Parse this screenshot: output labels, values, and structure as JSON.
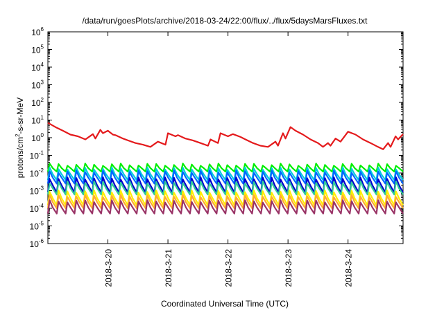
{
  "chart_data": {
    "type": "line",
    "title": "/data/run/goesPlots/archive/2018-03-24/22:00/flux/../flux/5daysMarsFluxes.txt",
    "xlabel": "Coordinated Universal Time (UTC)",
    "ylabel": "protons/cm2-s-sr-MeV",
    "ylabel_base": "protons/cm",
    "ylabel_sup": "2",
    "ylabel_rest": "-s-sr-MeV",
    "yscale": "log",
    "ylim": [
      1e-06,
      1000000.0
    ],
    "y_ticks": [
      {
        "value": 1e-06,
        "base": "10",
        "exp": "-6"
      },
      {
        "value": 1e-05,
        "base": "10",
        "exp": "-5"
      },
      {
        "value": 0.0001,
        "base": "10",
        "exp": "-4"
      },
      {
        "value": 0.001,
        "base": "10",
        "exp": "-3"
      },
      {
        "value": 0.01,
        "base": "10",
        "exp": "-2"
      },
      {
        "value": 0.1,
        "base": "10",
        "exp": "-1"
      },
      {
        "value": 1,
        "base": "10",
        "exp": "0"
      },
      {
        "value": 10,
        "base": "10",
        "exp": "1"
      },
      {
        "value": 100,
        "base": "10",
        "exp": "2"
      },
      {
        "value": 1000,
        "base": "10",
        "exp": "3"
      },
      {
        "value": 10000,
        "base": "10",
        "exp": "4"
      },
      {
        "value": 100000,
        "base": "10",
        "exp": "5"
      },
      {
        "value": 1000000,
        "base": "10",
        "exp": "6"
      }
    ],
    "xlim": [
      "2018-03-19T00:00",
      "2018-03-24T22:00"
    ],
    "x_ticks": [
      "2018-3-20",
      "2018-3-21",
      "2018-3-22",
      "2018-3-23",
      "2018-3-24"
    ],
    "grid": false,
    "legend": "none",
    "series": [
      {
        "color": "#e41a1c",
        "x": [
          "2018-03-19T00:00",
          "2018-03-19T03:00",
          "2018-03-19T06:00",
          "2018-03-19T09:00",
          "2018-03-19T12:00",
          "2018-03-19T15:00",
          "2018-03-19T18:00",
          "2018-03-19T19:00",
          "2018-03-19T21:00",
          "2018-03-19T22:00",
          "2018-03-20T00:00",
          "2018-03-20T02:00",
          "2018-03-20T03:00",
          "2018-03-20T06:00",
          "2018-03-20T08:00",
          "2018-03-20T11:00",
          "2018-03-20T14:00",
          "2018-03-20T17:00",
          "2018-03-20T20:00",
          "2018-03-20T23:00",
          "2018-03-21T00:00",
          "2018-03-21T03:00",
          "2018-03-21T04:00",
          "2018-03-21T07:00",
          "2018-03-21T10:00",
          "2018-03-21T13:00",
          "2018-03-21T16:00",
          "2018-03-21T17:00",
          "2018-03-21T20:00",
          "2018-03-21T21:00",
          "2018-03-22T00:00",
          "2018-03-22T02:00",
          "2018-03-22T05:00",
          "2018-03-22T07:00",
          "2018-03-22T10:00",
          "2018-03-22T13:00",
          "2018-03-22T16:00",
          "2018-03-22T19:00",
          "2018-03-22T20:00",
          "2018-03-22T22:00",
          "2018-03-22T23:00",
          "2018-03-23T01:00",
          "2018-03-23T03:00",
          "2018-03-23T06:00",
          "2018-03-23T09:00",
          "2018-03-23T12:00",
          "2018-03-23T14:00",
          "2018-03-23T16:00",
          "2018-03-23T17:00",
          "2018-03-23T19:00",
          "2018-03-23T21:00",
          "2018-03-24T00:00",
          "2018-03-24T03:00",
          "2018-03-24T06:00",
          "2018-03-24T09:00",
          "2018-03-24T12:00",
          "2018-03-24T14:00",
          "2018-03-24T16:00",
          "2018-03-24T17:00",
          "2018-03-24T19:00",
          "2018-03-24T20:00",
          "2018-03-24T22:00"
        ],
        "y": [
          7,
          4,
          2.5,
          1.5,
          1.2,
          0.8,
          1.6,
          0.9,
          2.8,
          1.8,
          2.5,
          1.5,
          1.4,
          0.9,
          0.7,
          0.5,
          0.4,
          0.3,
          0.6,
          0.4,
          1.8,
          1.2,
          1.4,
          0.9,
          0.7,
          0.5,
          0.35,
          0.8,
          0.5,
          1.8,
          1.2,
          1.6,
          1.1,
          0.8,
          0.5,
          0.35,
          0.3,
          0.6,
          0.35,
          1.8,
          0.9,
          4,
          2.5,
          1.5,
          0.8,
          0.5,
          0.3,
          0.5,
          0.35,
          0.9,
          0.6,
          2.2,
          1.5,
          0.8,
          0.5,
          0.3,
          0.22,
          0.5,
          0.3,
          1.2,
          0.8,
          1.6
        ]
      },
      {
        "color": "#00ee00",
        "peak": 0.03,
        "trough": 0.012
      },
      {
        "color": "#00ccdd",
        "peak": 0.018,
        "trough": 0.004
      },
      {
        "color": "#0066ff",
        "peak": 0.012,
        "trough": 0.0025
      },
      {
        "color": "#0000cc",
        "peak": 0.005,
        "trough": 0.0008
      },
      {
        "color": "#33cc99",
        "peak": 0.003,
        "trough": 0.0006
      },
      {
        "color": "#ffee00",
        "peak": 0.0009,
        "trough": 0.00015
      },
      {
        "color": "#ffaa33",
        "peak": 0.0005,
        "trough": 0.0001
      },
      {
        "color": "#993366",
        "peak": 0.00025,
        "trough": 5e-05
      }
    ]
  }
}
